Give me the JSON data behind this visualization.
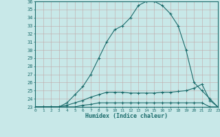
{
  "xlabel": "Humidex (Indice chaleur)",
  "bg_color": "#c8e8e8",
  "line_color": "#1a6b6b",
  "grid_color": "#b0d0d0",
  "ylim": [
    23,
    36
  ],
  "xlim": [
    0,
    23
  ],
  "yticks": [
    23,
    24,
    25,
    26,
    27,
    28,
    29,
    30,
    31,
    32,
    33,
    34,
    35,
    36
  ],
  "xticks": [
    0,
    1,
    2,
    3,
    4,
    5,
    6,
    7,
    8,
    9,
    10,
    11,
    12,
    13,
    14,
    15,
    16,
    17,
    18,
    19,
    20,
    21,
    22,
    23
  ],
  "curve1_x": [
    0,
    1,
    2,
    3,
    4,
    5,
    6,
    7,
    8,
    9,
    10,
    11,
    12,
    13,
    14,
    15,
    16,
    17,
    18,
    19,
    20,
    21,
    22,
    23
  ],
  "curve1_y": [
    23,
    23,
    23,
    23,
    23.5,
    24.5,
    25.5,
    27,
    29,
    31,
    32.5,
    33,
    34,
    35.5,
    36,
    36,
    35.5,
    34.5,
    33,
    30,
    26,
    25,
    24,
    23
  ],
  "curve2_x": [
    0,
    1,
    2,
    3,
    4,
    5,
    6,
    7,
    8,
    9,
    10,
    11,
    12,
    13,
    14,
    15,
    16,
    17,
    18,
    19,
    20,
    21,
    22,
    23
  ],
  "curve2_y": [
    23,
    23,
    23,
    23,
    23.2,
    23.5,
    23.8,
    24.2,
    24.5,
    24.8,
    24.8,
    24.8,
    24.7,
    24.7,
    24.7,
    24.7,
    24.8,
    24.8,
    24.9,
    25.0,
    25.3,
    25.8,
    23.8,
    23
  ],
  "curve3_x": [
    0,
    1,
    2,
    3,
    4,
    5,
    6,
    7,
    8,
    9,
    10,
    11,
    12,
    13,
    14,
    15,
    16,
    17,
    18,
    19,
    20,
    21,
    22,
    23
  ],
  "curve3_y": [
    23,
    23,
    23,
    23,
    23,
    23,
    23.2,
    23.3,
    23.5,
    23.5,
    23.5,
    23.5,
    23.5,
    23.5,
    23.5,
    23.5,
    23.5,
    23.5,
    23.5,
    23.5,
    23.5,
    23.5,
    23,
    23
  ]
}
